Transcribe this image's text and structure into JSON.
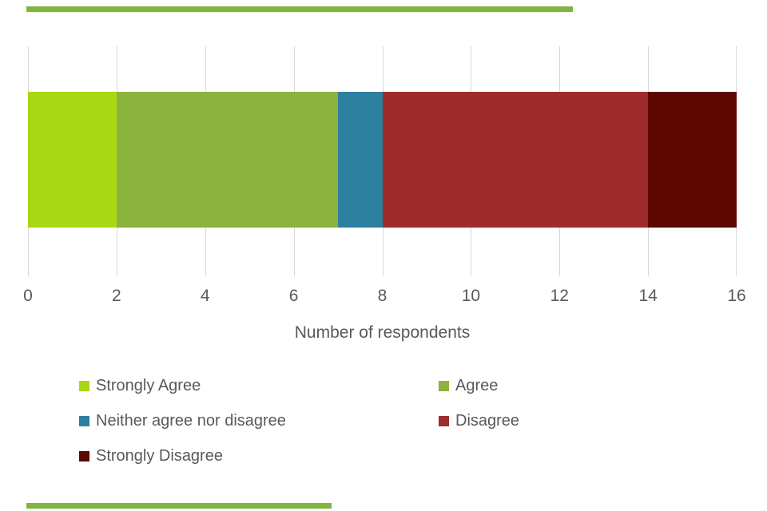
{
  "page": {
    "background": "#ffffff",
    "accent_color": "#82b43e",
    "text_color": "#595959",
    "gridline_color": "#d9d9d9"
  },
  "chart_data": {
    "type": "bar",
    "orientation": "horizontal-stacked",
    "title": "",
    "xlabel": "Number of respondents",
    "ylabel": "",
    "xlim": [
      0,
      16
    ],
    "xticks": [
      0,
      2,
      4,
      6,
      8,
      10,
      12,
      14,
      16
    ],
    "grid": true,
    "legend_position": "bottom",
    "series": [
      {
        "name": "Strongly Agree",
        "value": 2,
        "color": "#a9d713"
      },
      {
        "name": "Agree",
        "value": 5,
        "color": "#8bb33d"
      },
      {
        "name": "Neither agree nor disagree",
        "value": 1,
        "color": "#2e80a0"
      },
      {
        "name": "Disagree",
        "value": 6,
        "color": "#9f2c2c"
      },
      {
        "name": "Strongly Disagree",
        "value": 2,
        "color": "#5c0700"
      }
    ]
  }
}
